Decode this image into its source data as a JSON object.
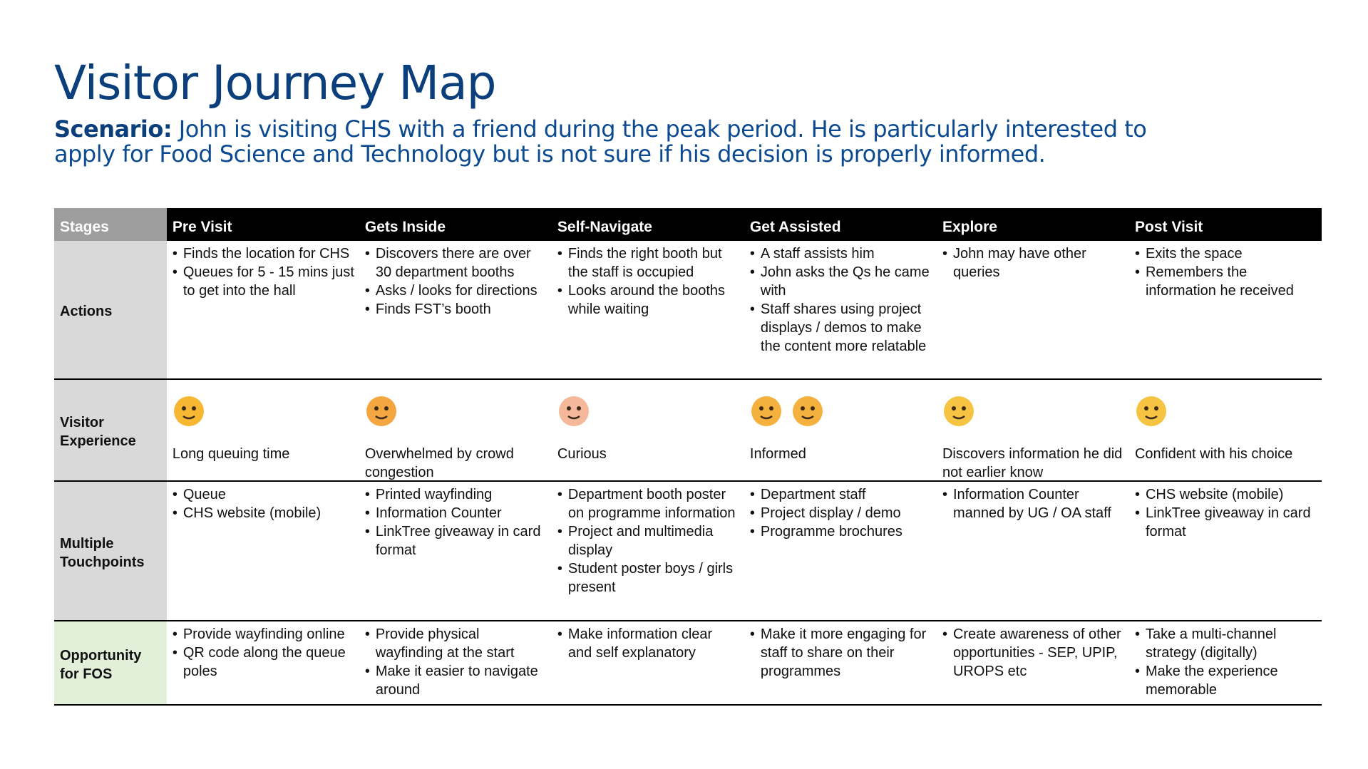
{
  "title": "Visitor Journey Map",
  "scenario": {
    "label": "Scenario:",
    "text": "John is visiting CHS with a friend during the peak period. He is particularly interested to apply for Food Science and Technology but is not sure if his decision is properly informed."
  },
  "table": {
    "header": [
      "Stages",
      "Pre Visit",
      "Gets Inside",
      "Self-Navigate",
      "Get Assisted",
      "Explore",
      "Post Visit"
    ],
    "rows": [
      {
        "label": "Actions",
        "cells": [
          [
            "Finds the location for CHS",
            "Queues for 5 - 15 mins just to get into the hall"
          ],
          [
            "Discovers there are over 30 department booths",
            "Asks / looks for directions",
            "Finds FST’s booth"
          ],
          [
            "Finds the right booth but the staff is occupied",
            "Looks around the booths while waiting"
          ],
          [
            "A staff assists him",
            "John asks the Qs he came with",
            "Staff shares using project displays / demos to make the content more relatable"
          ],
          [
            "John may have other queries"
          ],
          [
            "Exits the space",
            "Remembers the information he received"
          ]
        ]
      },
      {
        "label": "Visitor Experience",
        "cells": [
          "Long queuing time",
          "Overwhelmed by crowd congestion",
          "Curious",
          "Informed",
          "Discovers information he did not earlier know",
          "Confident with his choice"
        ]
      },
      {
        "label": "Multiple Touchpoints",
        "cells": [
          [
            "Queue",
            "CHS website (mobile)"
          ],
          [
            "Printed wayfinding",
            "Information Counter",
            "LinkTree giveaway in card format"
          ],
          [
            "Department booth poster on programme information",
            "Project and multimedia display",
            "Student poster boys / girls present"
          ],
          [
            "Department staff",
            "Project display / demo",
            "Programme brochures"
          ],
          [
            "Information Counter manned by UG / OA staff"
          ],
          [
            "CHS website (mobile)",
            "LinkTree giveaway in card format"
          ]
        ]
      },
      {
        "label": "Opportunity for FOS",
        "cells": [
          [
            "Provide wayfinding online",
            "QR code along the queue poles"
          ],
          [
            "Provide physical wayfinding at the start",
            "Make it easier to navigate around"
          ],
          [
            "Make information clear and self explanatory"
          ],
          [
            "Make it more engaging for staff to share on their programmes"
          ],
          [
            "Create awareness of other opportunities - SEP, UPIP, UROPS etc"
          ],
          [
            "Take a multi-channel strategy (digitally)",
            "Make the experience memorable"
          ]
        ]
      }
    ]
  }
}
